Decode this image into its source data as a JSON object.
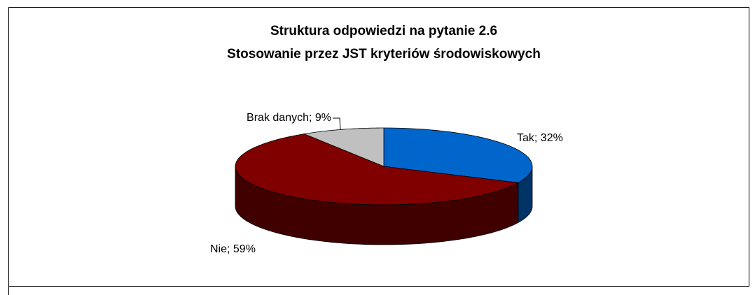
{
  "chart_data": {
    "type": "pie3d",
    "title": [
      "Struktura odpowiedzi na pytanie 2.6",
      "Stosowanie przez JST kryteriów środowiskowych"
    ],
    "values": [
      32,
      59,
      9
    ],
    "value_labels": [
      "Tak; 32%",
      "Nie; 59%",
      "Brak danych; 9%"
    ],
    "colors": [
      "#0066cc",
      "#800000",
      "#c0c0c0"
    ]
  }
}
